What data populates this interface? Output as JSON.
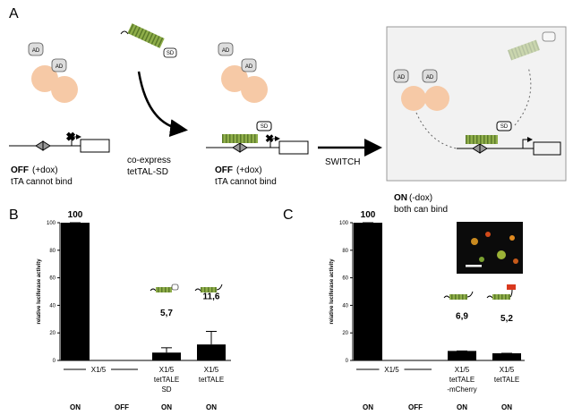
{
  "panel_a": {
    "label": "A",
    "ad": "AD",
    "sd": "SD",
    "coexpress": "co-express",
    "construct": "tetTAL-SD",
    "off": "OFF",
    "dox_plus": "(+dox)",
    "cannot_bind": "tTA cannot bind",
    "switch": "SWITCH",
    "on": "ON",
    "dox_minus": "(-dox)",
    "both_bind": "both can bind"
  },
  "chart_data": [
    {
      "type": "bar",
      "panel": "B",
      "ylabel": "relative luciferase activity",
      "color": "#000000",
      "categories": [
        [
          "X1/5"
        ],
        null,
        [
          "X1/5",
          "tetTALE",
          "SD"
        ],
        [
          "X1/5",
          "tetTALE"
        ]
      ],
      "values": [
        100,
        0,
        5.7,
        11.6
      ],
      "errors": [
        0,
        0,
        3.5,
        9.5
      ],
      "value_labels": [
        "100",
        null,
        "5,7",
        "11,6"
      ],
      "status": [
        "ON",
        "OFF",
        "ON",
        "ON"
      ],
      "ylim": [
        0,
        100
      ],
      "yticks": [
        0,
        20,
        40,
        60,
        80,
        100
      ]
    },
    {
      "type": "bar",
      "panel": "C",
      "ylabel": "relative luciferase activity",
      "color": "#000000",
      "categories": [
        [
          "X1/5"
        ],
        null,
        [
          "X1/5",
          "tetTALE",
          "-mCherry"
        ],
        [
          "X1/5",
          "tetTALE"
        ]
      ],
      "values": [
        100,
        0,
        6.9,
        5.2
      ],
      "errors": [
        0,
        0,
        0,
        0
      ],
      "value_labels": [
        "100",
        null,
        "6,9",
        "5,2"
      ],
      "status": [
        "ON",
        "OFF",
        "ON",
        "ON"
      ],
      "ylim": [
        0,
        100
      ],
      "yticks": [
        0,
        20,
        40,
        60,
        80,
        100
      ]
    }
  ]
}
